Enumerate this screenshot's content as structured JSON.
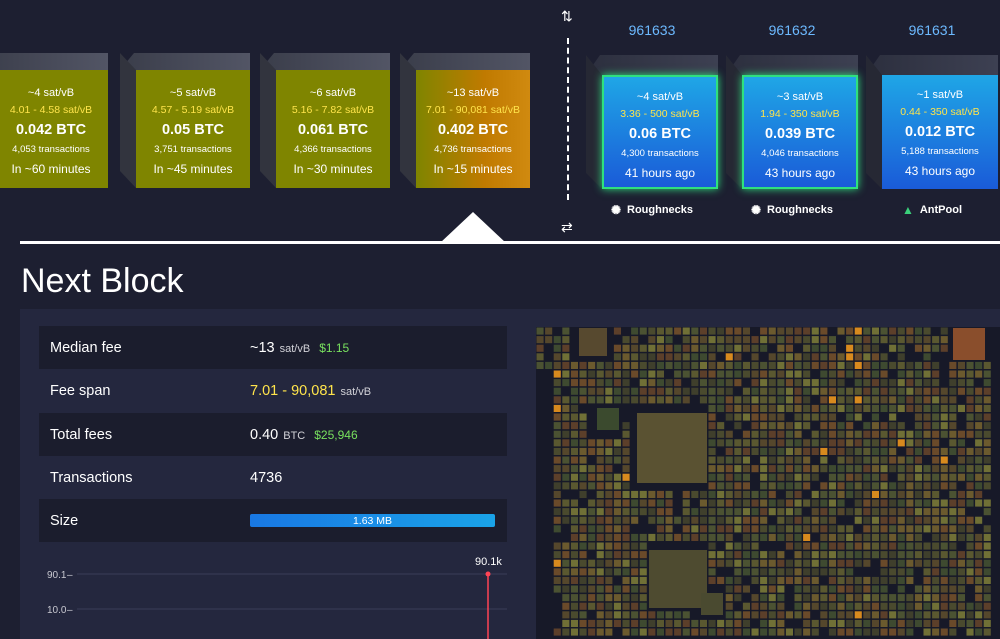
{
  "mempool_blocks": [
    {
      "fee": "~4 sat/vB",
      "range": "4.01 - 4.58 sat/vB",
      "amount": "0.042 BTC",
      "txs": "4,053 transactions",
      "eta": "In ~60 minutes",
      "color": "#7f8500"
    },
    {
      "fee": "~5 sat/vB",
      "range": "4.57 - 5.19 sat/vB",
      "amount": "0.05 BTC",
      "txs": "3,751 transactions",
      "eta": "In ~45 minutes",
      "color": "#7f8500"
    },
    {
      "fee": "~6 sat/vB",
      "range": "5.16 - 7.82 sat/vB",
      "amount": "0.061 BTC",
      "txs": "4,366 transactions",
      "eta": "In ~30 minutes",
      "color": "#7f8500"
    },
    {
      "fee": "~13 sat/vB",
      "range": "7.01 - 90,081 sat/vB",
      "amount": "0.402 BTC",
      "txs": "4,736 transactions",
      "eta": "In ~15 minutes",
      "color": "#a58000"
    }
  ],
  "blocks": [
    {
      "height": "961633",
      "fee": "~4 sat/vB",
      "range": "3.36 - 500 sat/vB",
      "amount": "0.06 BTC",
      "txs": "4,300 transactions",
      "time": "41 hours ago",
      "pool": "Roughnecks",
      "pool_icon": "roughnecks-icon"
    },
    {
      "height": "961632",
      "fee": "~3 sat/vB",
      "range": "1.94 - 350 sat/vB",
      "amount": "0.039 BTC",
      "txs": "4,046 transactions",
      "time": "43 hours ago",
      "pool": "Roughnecks",
      "pool_icon": "roughnecks-icon"
    },
    {
      "height": "961631",
      "fee": "~1 sat/vB",
      "range": "0.44 - 350 sat/vB",
      "amount": "0.012 BTC",
      "txs": "5,188 transactions",
      "time": "43 hours ago",
      "pool": "AntPool",
      "pool_icon": "antpool-icon"
    }
  ],
  "section_title": "Next Block",
  "stats": {
    "median_fee": {
      "label": "Median fee",
      "value": "~13",
      "unit": "sat/vB",
      "usd": "$1.15"
    },
    "fee_span": {
      "label": "Fee span",
      "value": "7.01 - 90,081",
      "unit": "sat/vB"
    },
    "total_fees": {
      "label": "Total fees",
      "value": "0.40",
      "unit": "BTC",
      "usd": "$25,946"
    },
    "transactions": {
      "label": "Transactions",
      "value": "4736"
    },
    "size": {
      "label": "Size",
      "value": "1.63 MB",
      "fill_fraction": 1.0
    }
  },
  "chart_data": {
    "type": "line",
    "ytick_labels": [
      "90.1",
      "10.0"
    ],
    "annotation": "90.1k",
    "color": "#ff4455"
  },
  "colors": {
    "accent": "#1a9be6",
    "selected_border": "#2fe07e",
    "fee_range": "#ffe44b",
    "usd": "#78e05e",
    "height": "#6cb9ff"
  }
}
